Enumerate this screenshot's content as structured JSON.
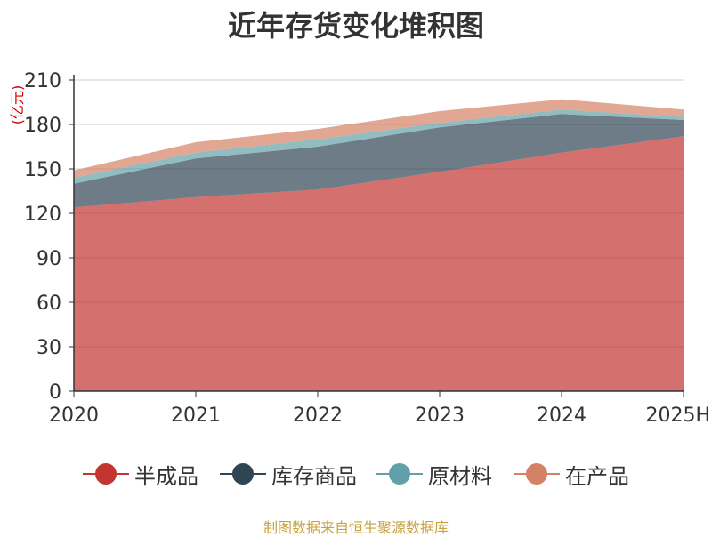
{
  "chart_data": {
    "type": "area",
    "stacked": true,
    "title": "近年存货变化堆积图",
    "unit_label": "亿元",
    "categories": [
      "2020",
      "2021",
      "2022",
      "2023",
      "2024",
      "2025H"
    ],
    "ylim": [
      0,
      210
    ],
    "yticks": [
      "0",
      "30",
      "60",
      "90",
      "120",
      "150",
      "180",
      "210"
    ],
    "grid": true,
    "legend_position": "bottom",
    "series": [
      {
        "name": "半成品",
        "color": "#c23531",
        "values": [
          124,
          131,
          136,
          148,
          161,
          172
        ]
      },
      {
        "name": "库存商品",
        "color": "#2f4554",
        "values": [
          16,
          26,
          29,
          30,
          26,
          11
        ]
      },
      {
        "name": "原材料",
        "color": "#61a0a8",
        "values": [
          4,
          4,
          5,
          3,
          3,
          2
        ]
      },
      {
        "name": "在产品",
        "color": "#d48265",
        "values": [
          5,
          7,
          7,
          8,
          7,
          5
        ]
      }
    ]
  },
  "source_note": "制图数据来自恒生聚源数据库"
}
